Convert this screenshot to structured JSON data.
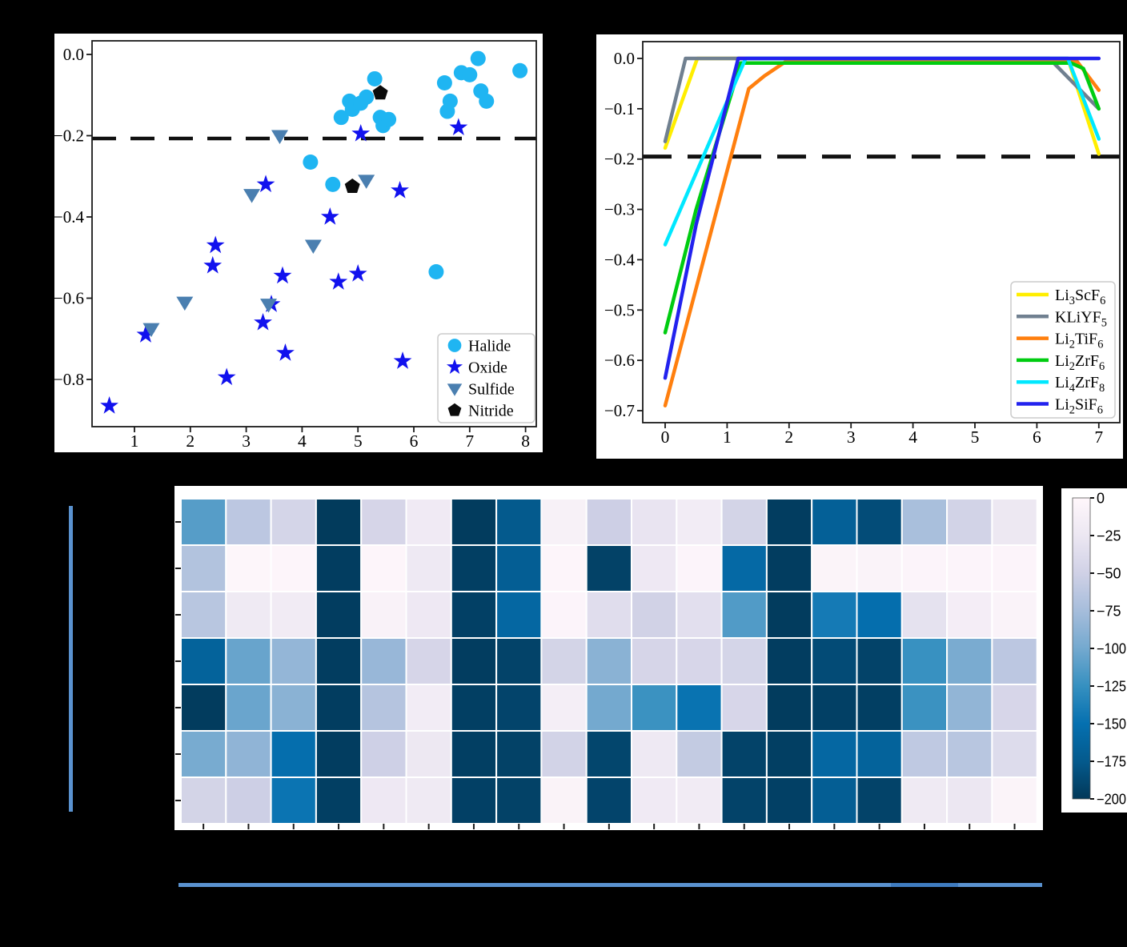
{
  "figure": {
    "background": "#000000",
    "dashed_threshold_color": "#111111",
    "decor_line_color": "#5a92cf"
  },
  "chart_data": [
    {
      "id": "scatter",
      "type": "scatter",
      "title": "",
      "xlabel": "",
      "ylabel": "",
      "xlim": [
        0.24,
        8.22
      ],
      "ylim": [
        -0.918,
        0.032
      ],
      "xticks": [
        "1",
        "2",
        "3",
        "4",
        "5",
        "6",
        "7",
        "8"
      ],
      "xtick_values": [
        1,
        2,
        3,
        4,
        5,
        6,
        7,
        8
      ],
      "ytick_values": [
        0.0,
        -0.2,
        -0.4,
        -0.6,
        -0.8
      ],
      "ytick_labels": [
        "0.0",
        "−0.2",
        "−0.4",
        "−0.6",
        "−0.8"
      ],
      "dashed_line_y": -0.207,
      "legend_position": "lower right",
      "series": [
        {
          "name": "Halide",
          "marker": "circle",
          "color": "#1fb5f2",
          "points": [
            [
              4.15,
              -0.265
            ],
            [
              4.55,
              -0.32
            ],
            [
              4.7,
              -0.155
            ],
            [
              4.85,
              -0.115
            ],
            [
              4.9,
              -0.135
            ],
            [
              5.05,
              -0.12
            ],
            [
              5.15,
              -0.105
            ],
            [
              5.3,
              -0.06
            ],
            [
              5.4,
              -0.155
            ],
            [
              5.45,
              -0.175
            ],
            [
              5.55,
              -0.16
            ],
            [
              6.4,
              -0.535
            ],
            [
              6.55,
              -0.07
            ],
            [
              6.6,
              -0.14
            ],
            [
              6.65,
              -0.115
            ],
            [
              6.85,
              -0.045
            ],
            [
              7.0,
              -0.05
            ],
            [
              7.15,
              -0.01
            ],
            [
              7.2,
              -0.09
            ],
            [
              7.3,
              -0.115
            ],
            [
              7.9,
              -0.04
            ]
          ]
        },
        {
          "name": "Oxide",
          "marker": "star",
          "color": "#1111ee",
          "points": [
            [
              0.55,
              -0.865
            ],
            [
              1.2,
              -0.69
            ],
            [
              2.4,
              -0.52
            ],
            [
              2.45,
              -0.47
            ],
            [
              2.65,
              -0.795
            ],
            [
              3.3,
              -0.66
            ],
            [
              3.35,
              -0.32
            ],
            [
              3.45,
              -0.615
            ],
            [
              3.65,
              -0.545
            ],
            [
              3.7,
              -0.735
            ],
            [
              4.5,
              -0.4
            ],
            [
              4.65,
              -0.56
            ],
            [
              5.0,
              -0.54
            ],
            [
              5.05,
              -0.195
            ],
            [
              5.75,
              -0.335
            ],
            [
              5.8,
              -0.755
            ],
            [
              6.8,
              -0.18
            ]
          ]
        },
        {
          "name": "Sulfide",
          "marker": "triangle-down",
          "color": "#4a7fb0",
          "points": [
            [
              1.3,
              -0.675
            ],
            [
              1.9,
              -0.61
            ],
            [
              3.1,
              -0.345
            ],
            [
              3.4,
              -0.615
            ],
            [
              3.6,
              -0.2
            ],
            [
              4.2,
              -0.47
            ],
            [
              5.15,
              -0.31
            ]
          ]
        },
        {
          "name": "Nitride",
          "marker": "pentagon",
          "color": "#0b0b0b",
          "points": [
            [
              4.9,
              -0.325
            ],
            [
              5.4,
              -0.095
            ]
          ]
        }
      ]
    },
    {
      "id": "lines",
      "type": "line",
      "title": "",
      "xlabel": "",
      "ylabel": "",
      "xlim": [
        -0.36,
        7.34
      ],
      "ylim": [
        -0.725,
        0.033
      ],
      "xticks": [
        "0",
        "1",
        "2",
        "3",
        "4",
        "5",
        "6",
        "7"
      ],
      "xtick_values": [
        0,
        1,
        2,
        3,
        4,
        5,
        6,
        7
      ],
      "ytick_values": [
        0.0,
        -0.1,
        -0.2,
        -0.3,
        -0.4,
        -0.5,
        -0.6,
        -0.7
      ],
      "ytick_labels": [
        "0.0",
        "−0.1",
        "−0.2",
        "−0.3",
        "−0.4",
        "−0.5",
        "−0.6",
        "−0.7"
      ],
      "dashed_line_y": -0.195,
      "legend_position": "lower right",
      "series": [
        {
          "name": "Li3ScF6",
          "color": "#ffee00",
          "points": [
            [
              0,
              -0.178
            ],
            [
              0.52,
              0
            ],
            [
              6.5,
              0
            ],
            [
              7,
              -0.19
            ]
          ]
        },
        {
          "name": "KLiYF5",
          "color": "#708090",
          "points": [
            [
              0,
              -0.165
            ],
            [
              0.33,
              0
            ],
            [
              6.2,
              0
            ],
            [
              6.6,
              -0.05
            ],
            [
              7,
              -0.1
            ]
          ]
        },
        {
          "name": "Li2TiF6",
          "color": "#ff7f0e",
          "points": [
            [
              0,
              -0.69
            ],
            [
              1.35,
              -0.06
            ],
            [
              1.6,
              -0.035
            ],
            [
              1.95,
              -0.006
            ],
            [
              6.65,
              -0.006
            ],
            [
              7,
              -0.063
            ]
          ]
        },
        {
          "name": "Li2ZrF6",
          "color": "#00cc11",
          "points": [
            [
              0,
              -0.545
            ],
            [
              0.5,
              -0.3
            ],
            [
              1.22,
              -0.009
            ],
            [
              6.55,
              -0.009
            ],
            [
              6.75,
              -0.02
            ],
            [
              7,
              -0.1
            ]
          ]
        },
        {
          "name": "Li4ZrF8",
          "color": "#00e8ff",
          "points": [
            [
              0,
              -0.37
            ],
            [
              1.3,
              0
            ],
            [
              6.5,
              0
            ],
            [
              7,
              -0.16
            ]
          ]
        },
        {
          "name": "Li2SiF6",
          "color": "#2222ee",
          "points": [
            [
              0,
              -0.635
            ],
            [
              0.5,
              -0.33
            ],
            [
              1.18,
              0
            ],
            [
              7,
              0
            ]
          ]
        }
      ]
    },
    {
      "id": "heatmap",
      "type": "heatmap",
      "rows": 7,
      "cols": 19,
      "vmin": -200,
      "vmax": 0,
      "colormap_stops": [
        "#fff7fb",
        "#ece7f2",
        "#d0d1e6",
        "#a6bddb",
        "#74a9cf",
        "#3690c0",
        "#0570b0",
        "#045a8d",
        "#023858"
      ],
      "colorbar_tick_values": [
        0,
        -25,
        -50,
        -75,
        -100,
        -125,
        -150,
        -175,
        -200
      ],
      "colorbar_tick_labels": [
        "0",
        "−25",
        "−50",
        "−75",
        "−100",
        "−125",
        "−150",
        "−175",
        "−200"
      ],
      "values": [
        [
          -112,
          -62,
          -46,
          -198,
          -45,
          -20,
          -197,
          -175,
          -10,
          -52,
          -28,
          -17,
          -47,
          -196,
          -168,
          -185,
          -73,
          -48,
          -24
        ],
        [
          -68,
          -2,
          -3,
          -196,
          -3,
          -22,
          -195,
          -170,
          -3,
          -193,
          -23,
          -4,
          -158,
          -196,
          -5,
          -6,
          -4,
          -4,
          -4
        ],
        [
          -64,
          -21,
          -19,
          -196,
          -8,
          -23,
          -194,
          -160,
          -4,
          -36,
          -49,
          -34,
          -114,
          -197,
          -142,
          -152,
          -31,
          -15,
          -6
        ],
        [
          -165,
          -105,
          -84,
          -196,
          -82,
          -45,
          -196,
          -192,
          -47,
          -89,
          -45,
          -44,
          -46,
          -196,
          -186,
          -192,
          -124,
          -97,
          -62
        ],
        [
          -197,
          -104,
          -89,
          -196,
          -66,
          -17,
          -195,
          -191,
          -14,
          -100,
          -123,
          -148,
          -44,
          -197,
          -194,
          -195,
          -123,
          -85,
          -44
        ],
        [
          -98,
          -86,
          -152,
          -196,
          -51,
          -24,
          -195,
          -193,
          -48,
          -190,
          -22,
          -58,
          -192,
          -195,
          -160,
          -165,
          -60,
          -64,
          -38
        ],
        [
          -47,
          -52,
          -147,
          -195,
          -23,
          -21,
          -194,
          -193,
          -7,
          -191,
          -20,
          -19,
          -192,
          -194,
          -170,
          -192,
          -21,
          -25,
          -5
        ]
      ]
    }
  ]
}
